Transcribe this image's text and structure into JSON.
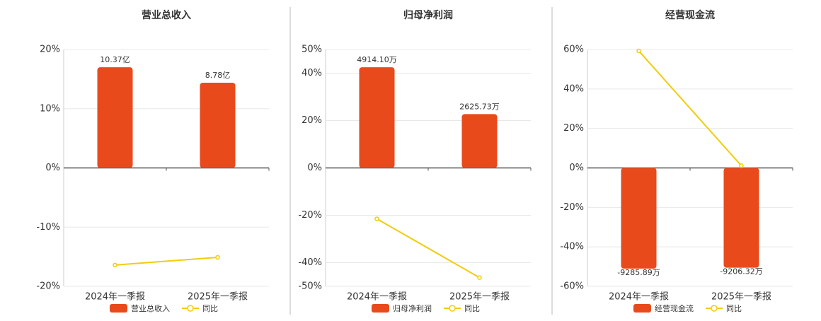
{
  "chart_data": [
    {
      "type": "bar",
      "title": "营业总收入",
      "categories": [
        "2024年一季报",
        "2025年一季报"
      ],
      "series": [
        {
          "name": "营业总收入",
          "color": "#e84a1c",
          "values": [
            10.37,
            8.78
          ],
          "value_labels": [
            "10.37亿",
            "8.78亿"
          ]
        },
        {
          "name": "同比",
          "type": "line",
          "color": "#f2cc0c",
          "values": [
            -16.4,
            -15.1
          ]
        }
      ],
      "ylim": [
        -20,
        20
      ],
      "yticks": [
        {
          "value": -20,
          "label": "-20%"
        },
        {
          "value": -10,
          "label": "-10%"
        },
        {
          "value": 0,
          "label": "0%"
        },
        {
          "value": 10,
          "label": "10%"
        },
        {
          "value": 20,
          "label": "20%"
        }
      ],
      "grid": true
    },
    {
      "type": "bar",
      "title": "归母净利润",
      "categories": [
        "2024年一季报",
        "2025年一季报"
      ],
      "series": [
        {
          "name": "归母净利润",
          "color": "#e84a1c",
          "values": [
            4914.1,
            2625.73
          ],
          "value_labels": [
            "4914.10万",
            "2625.73万"
          ]
        },
        {
          "name": "同比",
          "type": "line",
          "color": "#f2cc0c",
          "values": [
            -21.5,
            -46.3
          ]
        }
      ],
      "ylim": [
        -50,
        50
      ],
      "yticks": [
        {
          "value": -50,
          "label": "-50%"
        },
        {
          "value": -40,
          "label": "-40%"
        },
        {
          "value": -20,
          "label": "-20%"
        },
        {
          "value": 0,
          "label": "0%"
        },
        {
          "value": 20,
          "label": "20%"
        },
        {
          "value": 40,
          "label": "40%"
        },
        {
          "value": 50,
          "label": "50%"
        }
      ],
      "grid": true
    },
    {
      "type": "bar",
      "title": "经营现金流",
      "categories": [
        "2024年一季报",
        "2025年一季报"
      ],
      "series": [
        {
          "name": "经营现金流",
          "color": "#e84a1c",
          "values": [
            -9285.89,
            -9206.32
          ],
          "value_labels": [
            "-9285.89万",
            "-9206.32万"
          ]
        },
        {
          "name": "同比",
          "type": "line",
          "color": "#f2cc0c",
          "values": [
            59.3,
            1.1
          ]
        }
      ],
      "ylim": [
        -60,
        60
      ],
      "yticks": [
        {
          "value": -60,
          "label": "-60%"
        },
        {
          "value": -40,
          "label": "-40%"
        },
        {
          "value": -20,
          "label": "-20%"
        },
        {
          "value": 0,
          "label": "0%"
        },
        {
          "value": 20,
          "label": "20%"
        },
        {
          "value": 40,
          "label": "40%"
        },
        {
          "value": 60,
          "label": "60%"
        }
      ],
      "grid": true
    }
  ]
}
